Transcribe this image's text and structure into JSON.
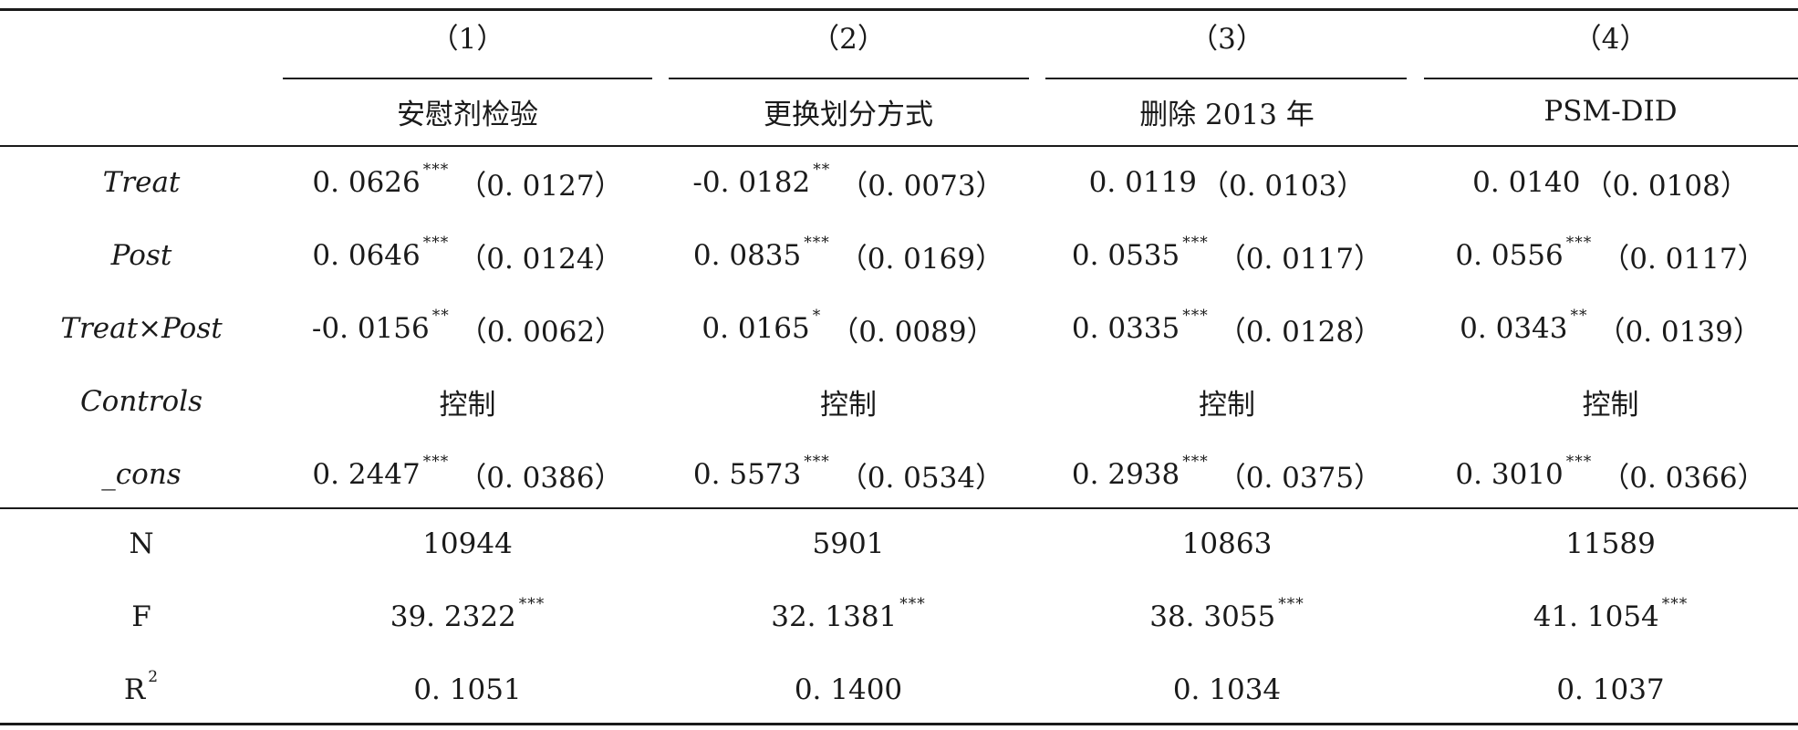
{
  "header": {
    "numbers": [
      "（1）",
      "（2）",
      "（3）",
      "（4）"
    ],
    "titles": [
      "安慰剂检验",
      "更换划分方式",
      "删除 2013 年",
      "PSM-DID"
    ]
  },
  "rows": [
    {
      "label": "Treat",
      "cells": [
        {
          "coef": "0. 0626",
          "stars": "***",
          "se": "（0. 0127）"
        },
        {
          "coef": "-0. 0182",
          "stars": "**",
          "se": "（0. 0073）"
        },
        {
          "coef": "0. 0119",
          "stars": "",
          "se": "（0. 0103）"
        },
        {
          "coef": "0. 0140",
          "stars": "",
          "se": "（0. 0108）"
        }
      ]
    },
    {
      "label": "Post",
      "cells": [
        {
          "coef": "0. 0646",
          "stars": "***",
          "se": "（0. 0124）"
        },
        {
          "coef": "0. 0835",
          "stars": "***",
          "se": "（0. 0169）"
        },
        {
          "coef": "0. 0535",
          "stars": "***",
          "se": "（0. 0117）"
        },
        {
          "coef": "0. 0556",
          "stars": "***",
          "se": "（0. 0117）"
        }
      ]
    },
    {
      "label": "Treat×Post",
      "cells": [
        {
          "coef": "-0. 0156",
          "stars": "**",
          "se": "（0. 0062）"
        },
        {
          "coef": "0. 0165",
          "stars": "*",
          "se": "（0. 0089）"
        },
        {
          "coef": "0. 0335",
          "stars": "***",
          "se": "（0. 0128）"
        },
        {
          "coef": "0. 0343",
          "stars": "**",
          "se": "（0. 0139）"
        }
      ]
    },
    {
      "label": "Controls",
      "cells": [
        {
          "coef": "控制",
          "stars": "",
          "se": ""
        },
        {
          "coef": "控制",
          "stars": "",
          "se": ""
        },
        {
          "coef": "控制",
          "stars": "",
          "se": ""
        },
        {
          "coef": "控制",
          "stars": "",
          "se": ""
        }
      ]
    },
    {
      "label": "_cons",
      "cells": [
        {
          "coef": "0. 2447",
          "stars": "***",
          "se": "（0. 0386）"
        },
        {
          "coef": "0. 5573",
          "stars": "***",
          "se": "（0. 0534）"
        },
        {
          "coef": "0. 2938",
          "stars": "***",
          "se": "（0. 0375）"
        },
        {
          "coef": "0. 3010",
          "stars": "***",
          "se": "（0. 0366）"
        }
      ]
    }
  ],
  "stats": [
    {
      "label": "N",
      "sup": "",
      "cells": [
        {
          "value": "10944",
          "stars": ""
        },
        {
          "value": "5901",
          "stars": ""
        },
        {
          "value": "10863",
          "stars": ""
        },
        {
          "value": "11589",
          "stars": ""
        }
      ]
    },
    {
      "label": "F",
      "sup": "",
      "cells": [
        {
          "value": "39. 2322",
          "stars": "***"
        },
        {
          "value": "32. 1381",
          "stars": "***"
        },
        {
          "value": "38. 3055",
          "stars": "***"
        },
        {
          "value": "41. 1054",
          "stars": "***"
        }
      ]
    },
    {
      "label": "R",
      "sup": "2",
      "cells": [
        {
          "value": "0. 1051",
          "stars": ""
        },
        {
          "value": "0. 1400",
          "stars": ""
        },
        {
          "value": "0. 1034",
          "stars": ""
        },
        {
          "value": "0. 1037",
          "stars": ""
        }
      ]
    }
  ]
}
